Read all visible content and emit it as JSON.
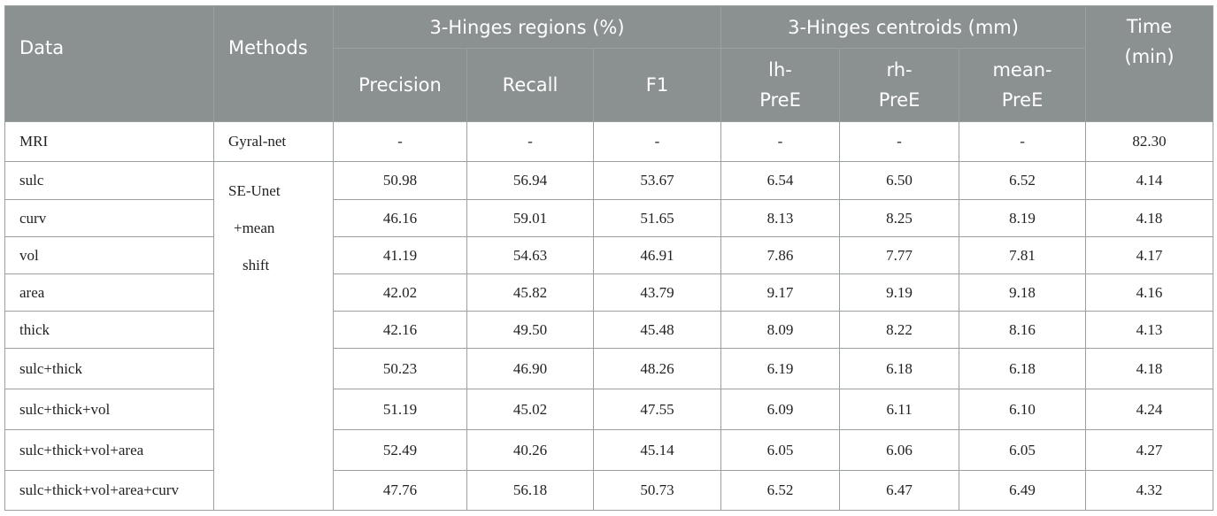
{
  "table": {
    "headers": {
      "data": "Data",
      "methods": "Methods",
      "regions_group": "3-Hinges regions (%)",
      "centroids_group": "3-Hinges centroids (mm)",
      "time_line1": "Time",
      "time_line2": "(min)",
      "precision": "Precision",
      "recall": "Recall",
      "f1": "F1",
      "lh_line1": "lh-",
      "lh_line2": "PreE",
      "rh_line1": "rh-",
      "rh_line2": "PreE",
      "mean_line1": "mean-",
      "mean_line2": "PreE"
    },
    "rows": [
      {
        "data": "MRI",
        "method": "Gyral-net",
        "precision": "-",
        "recall": "-",
        "f1": "-",
        "lh": "-",
        "rh": "-",
        "mean": "-",
        "time": "82.30"
      },
      {
        "data": "sulc",
        "precision": "50.98",
        "recall": "56.94",
        "f1": "53.67",
        "lh": "6.54",
        "rh": "6.50",
        "mean": "6.52",
        "time": "4.14"
      },
      {
        "data": "curv",
        "precision": "46.16",
        "recall": "59.01",
        "f1": "51.65",
        "lh": "8.13",
        "rh": "8.25",
        "mean": "8.19",
        "time": "4.18"
      },
      {
        "data": "vol",
        "precision": "41.19",
        "recall": "54.63",
        "f1": "46.91",
        "lh": "7.86",
        "rh": "7.77",
        "mean": "7.81",
        "time": "4.17"
      },
      {
        "data": "area",
        "precision": "42.02",
        "recall": "45.82",
        "f1": "43.79",
        "lh": "9.17",
        "rh": "9.19",
        "mean": "9.18",
        "time": "4.16"
      },
      {
        "data": "thick",
        "precision": "42.16",
        "recall": "49.50",
        "f1": "45.48",
        "lh": "8.09",
        "rh": "8.22",
        "mean": "8.16",
        "time": "4.13"
      },
      {
        "data": "sulc+thick",
        "precision": "50.23",
        "recall": "46.90",
        "f1": "48.26",
        "lh": "6.19",
        "rh": "6.18",
        "mean": "6.18",
        "time": "4.18"
      },
      {
        "data": "sulc+thick+vol",
        "precision": "51.19",
        "recall": "45.02",
        "f1": "47.55",
        "lh": "6.09",
        "rh": "6.11",
        "mean": "6.10",
        "time": "4.24"
      },
      {
        "data": "sulc+thick+vol+area",
        "precision": "52.49",
        "recall": "40.26",
        "f1": "45.14",
        "lh": "6.05",
        "rh": "6.06",
        "mean": "6.05",
        "time": "4.27"
      },
      {
        "data": "sulc+thick+vol+area+curv",
        "precision": "47.76",
        "recall": "56.18",
        "f1": "50.73",
        "lh": "6.52",
        "rh": "6.47",
        "mean": "6.49",
        "time": "4.32"
      }
    ],
    "method_merged": {
      "line1": "SE-Unet",
      "line2": "+mean",
      "line3": "shift"
    },
    "colors": {
      "header_bg": "#8b9191",
      "header_text": "#ffffff",
      "border": "#9aa0a0"
    }
  }
}
